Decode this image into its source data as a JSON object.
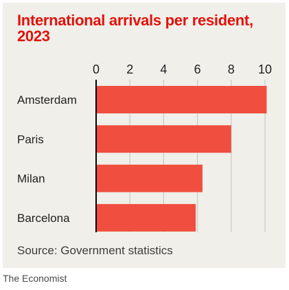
{
  "credit": "The Economist",
  "chart_data": {
    "type": "bar",
    "orientation": "horizontal",
    "title": "International arrivals per resident, 2023",
    "source": "Source: Government statistics",
    "categories": [
      "Amsterdam",
      "Paris",
      "Milan",
      "Barcelona"
    ],
    "values": [
      10.1,
      8.0,
      6.3,
      5.9
    ],
    "xticks": [
      "0",
      "2",
      "4",
      "6",
      "8",
      "10"
    ],
    "xlim": [
      0,
      10.5
    ],
    "grid": true,
    "colors": {
      "bar": "#f04e3e",
      "title": "#e3120b",
      "grid": "#c9c9c4",
      "axis": "#000000",
      "background": "#f0efea"
    }
  }
}
